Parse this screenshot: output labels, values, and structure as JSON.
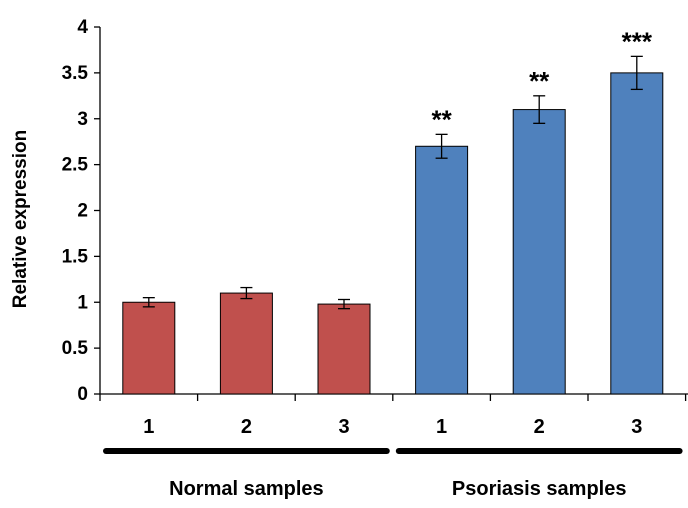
{
  "chart_data": {
    "type": "bar",
    "ylabel": "Relative expression",
    "ylim": [
      0,
      4
    ],
    "yticks": [
      "0",
      "0.5",
      "1",
      "1.5",
      "2",
      "2.5",
      "3",
      "3.5",
      "4"
    ],
    "categories": [
      "1",
      "2",
      "3",
      "1",
      "2",
      "3"
    ],
    "values": [
      1.0,
      1.1,
      0.98,
      2.7,
      3.1,
      3.5
    ],
    "errors": [
      0.05,
      0.06,
      0.05,
      0.13,
      0.15,
      0.18
    ],
    "significance": [
      "",
      "",
      "",
      "**",
      "**",
      "***"
    ],
    "groups": [
      {
        "name": "Normal samples",
        "indices": [
          0,
          1,
          2
        ],
        "color": "#c0504d"
      },
      {
        "name": "Psoriasis samples",
        "indices": [
          3,
          4,
          5
        ],
        "color": "#4f81bd"
      }
    ],
    "grid": false,
    "legend": "none"
  }
}
